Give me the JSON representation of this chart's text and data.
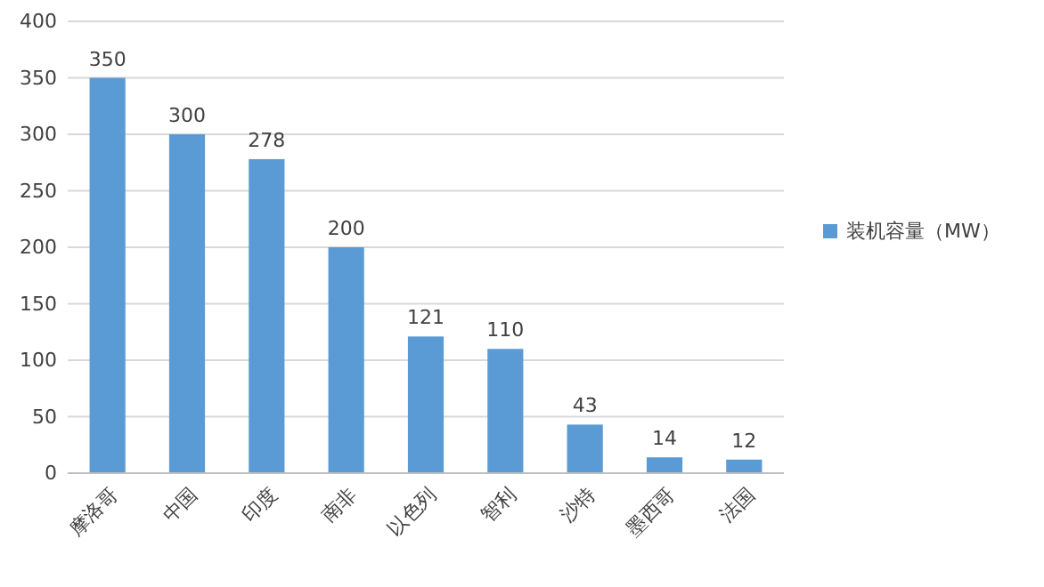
{
  "chart_data": {
    "type": "bar",
    "categories": [
      "摩洛哥",
      "中国",
      "印度",
      "南非",
      "以色列",
      "智利",
      "沙特",
      "墨西哥",
      "法国"
    ],
    "series": [
      {
        "name": "装机容量（MW）",
        "color": "#5b9bd5",
        "values": [
          350,
          300,
          278,
          200,
          121,
          110,
          43,
          14,
          12
        ]
      }
    ],
    "ylim": [
      0,
      400
    ],
    "yticks": [
      0,
      50,
      100,
      150,
      200,
      250,
      300,
      350,
      400
    ],
    "grid": "y",
    "legend": "right",
    "data_labels": true
  }
}
